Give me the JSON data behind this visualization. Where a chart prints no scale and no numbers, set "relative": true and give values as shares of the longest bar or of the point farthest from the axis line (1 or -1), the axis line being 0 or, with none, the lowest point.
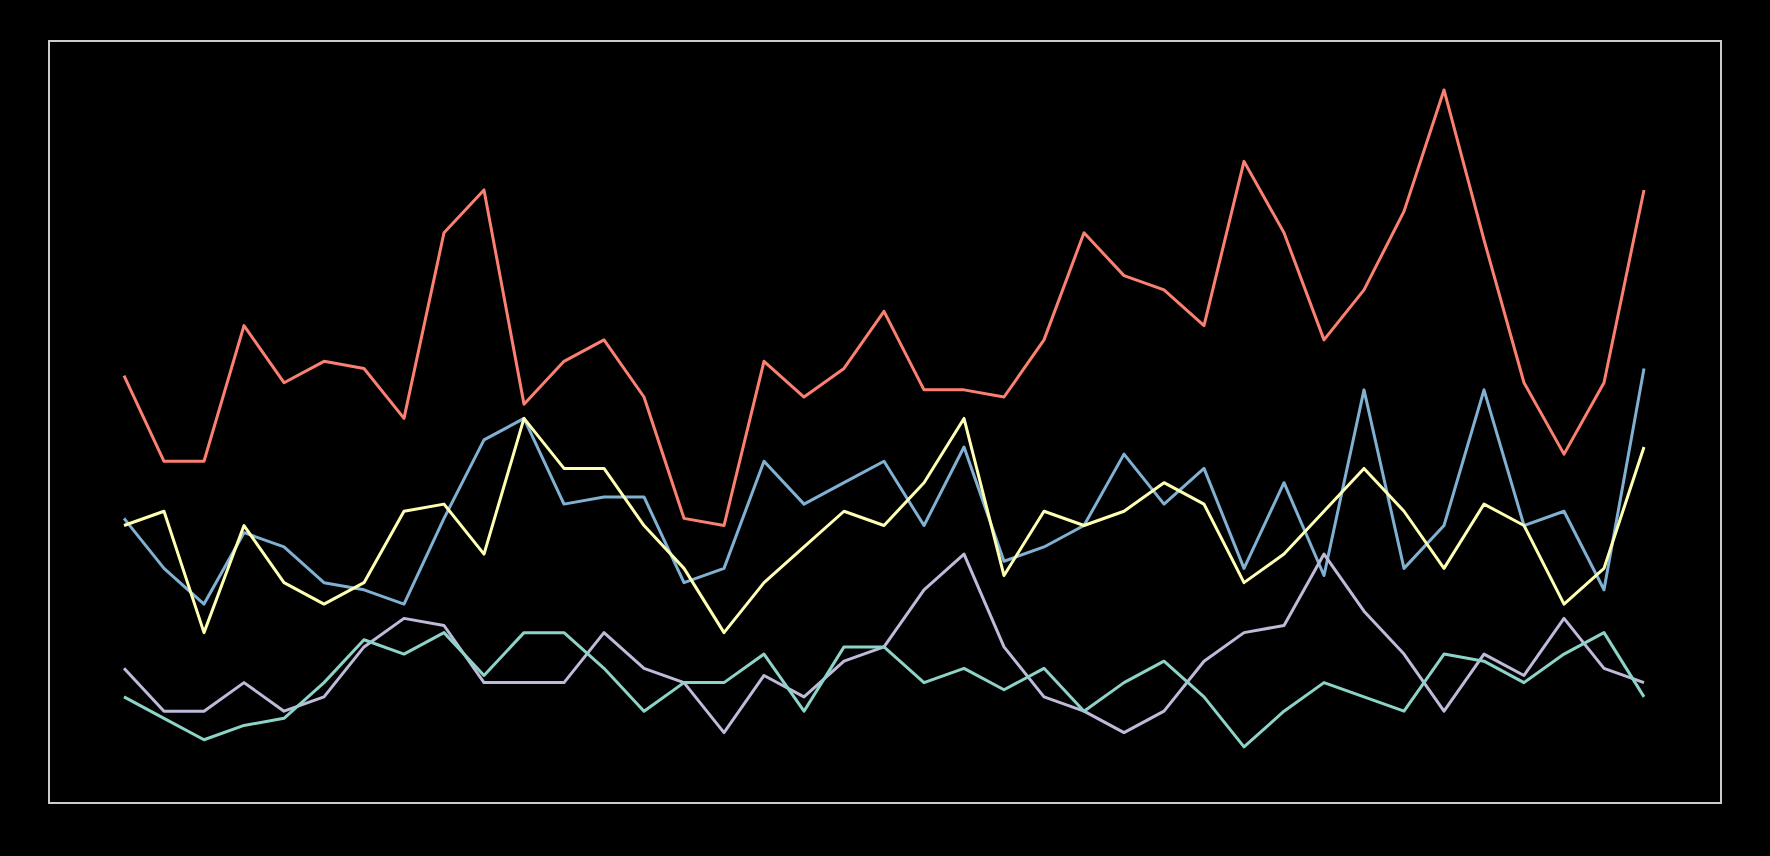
{
  "chart_data": {
    "type": "line",
    "relative": true,
    "legend": false,
    "marker": "none",
    "line_style": "solid",
    "categories": [
      null,
      null,
      null,
      null,
      null,
      null,
      null,
      null,
      null,
      null,
      null,
      null,
      null,
      null,
      null,
      null,
      null,
      null,
      null,
      null,
      null,
      null,
      null,
      null,
      null,
      null,
      null,
      null,
      null,
      null,
      null,
      null,
      null,
      null,
      null,
      null,
      null,
      null,
      null
    ],
    "series": [
      {
        "color": "#8dd3c7",
        "values": [
          0.15,
          0.12,
          0.09,
          0.11,
          0.12,
          0.17,
          0.23,
          0.21,
          0.24,
          0.18,
          0.24,
          0.24,
          0.19,
          0.13,
          0.17,
          0.17,
          0.21,
          0.13,
          0.22,
          0.22,
          0.17,
          0.19,
          0.16,
          0.19,
          0.13,
          0.17,
          0.2,
          0.15,
          0.08,
          0.13,
          0.17,
          0.15,
          0.13,
          0.21,
          0.2,
          0.17,
          0.21,
          0.24,
          0.15
        ]
      },
      {
        "color": "#ffffb3",
        "values": [
          0.39,
          0.41,
          0.24,
          0.39,
          0.31,
          0.28,
          0.31,
          0.41,
          0.42,
          0.35,
          0.54,
          0.47,
          0.47,
          0.39,
          0.33,
          0.24,
          0.31,
          0.36,
          0.41,
          0.39,
          0.45,
          0.54,
          0.32,
          0.41,
          0.39,
          0.41,
          0.45,
          0.42,
          0.31,
          0.35,
          0.41,
          0.47,
          0.41,
          0.33,
          0.42,
          0.39,
          0.28,
          0.33,
          0.5
        ]
      },
      {
        "color": "#bebada",
        "values": [
          0.19,
          0.13,
          0.13,
          0.17,
          0.13,
          0.15,
          0.22,
          0.26,
          0.25,
          0.17,
          0.17,
          0.17,
          0.24,
          0.19,
          0.17,
          0.1,
          0.18,
          0.15,
          0.2,
          0.22,
          0.3,
          0.35,
          0.22,
          0.15,
          0.13,
          0.1,
          0.13,
          0.2,
          0.24,
          0.25,
          0.35,
          0.27,
          0.21,
          0.13,
          0.21,
          0.18,
          0.26,
          0.19,
          0.17
        ]
      },
      {
        "color": "#fb8072",
        "values": [
          0.6,
          0.48,
          0.48,
          0.67,
          0.59,
          0.62,
          0.61,
          0.54,
          0.8,
          0.86,
          0.56,
          0.62,
          0.65,
          0.57,
          0.4,
          0.39,
          0.62,
          0.57,
          0.61,
          0.69,
          0.58,
          0.58,
          0.57,
          0.65,
          0.8,
          0.74,
          0.72,
          0.67,
          0.9,
          0.8,
          0.65,
          0.72,
          0.83,
          1,
          0.79,
          0.59,
          0.49,
          0.59,
          0.86
        ]
      },
      {
        "color": "#80b1d3",
        "values": [
          0.4,
          0.33,
          0.28,
          0.38,
          0.36,
          0.31,
          0.3,
          0.28,
          0.4,
          0.51,
          0.54,
          0.42,
          0.43,
          0.43,
          0.31,
          0.33,
          0.48,
          0.42,
          0.45,
          0.48,
          0.39,
          0.5,
          0.34,
          0.36,
          0.39,
          0.49,
          0.42,
          0.47,
          0.33,
          0.45,
          0.32,
          0.58,
          0.33,
          0.39,
          0.58,
          0.39,
          0.41,
          0.3,
          0.61
        ]
      }
    ]
  }
}
